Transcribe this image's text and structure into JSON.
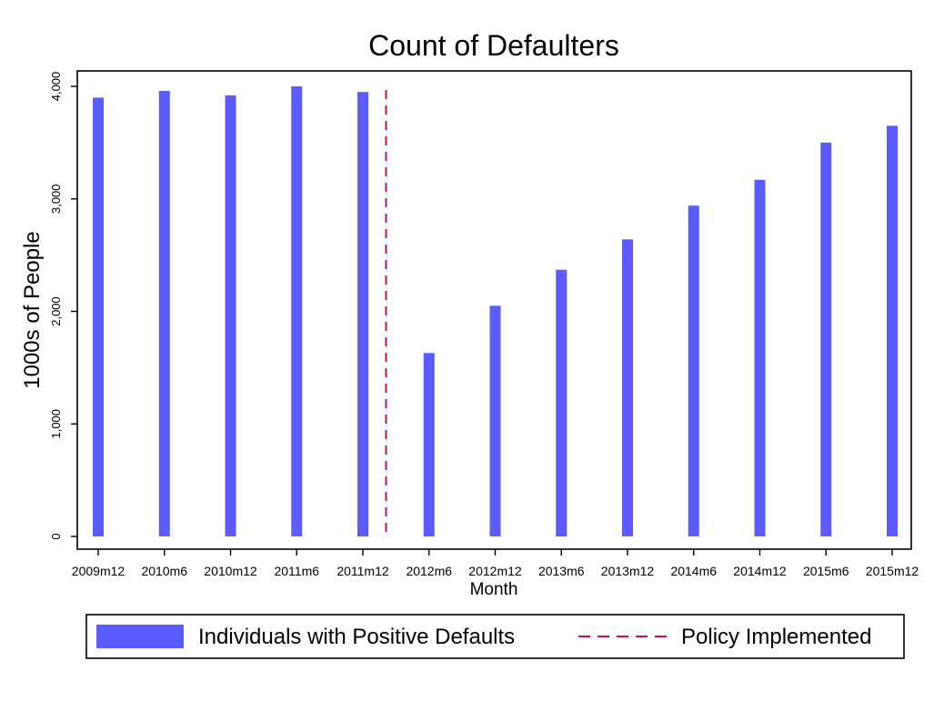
{
  "colors": {
    "bar": "#5b5bff",
    "policy_line": "#c0144c",
    "axis": "#000000",
    "background": "#ffffff"
  },
  "chart_data": {
    "type": "bar",
    "title": "Count of Defaulters",
    "xlabel": "Month",
    "ylabel": "1000s of People",
    "ylim": [
      0,
      4000
    ],
    "yticks": [
      "0",
      "1,000",
      "2,000",
      "3,000",
      "4,000"
    ],
    "ytick_values": [
      0,
      1000,
      2000,
      3000,
      4000
    ],
    "categories": [
      "2009m12",
      "2010m6",
      "2010m12",
      "2011m6",
      "2011m12",
      "2012m6",
      "2012m12",
      "2013m6",
      "2013m12",
      "2014m6",
      "2014m12",
      "2015m6",
      "2015m12"
    ],
    "series": [
      {
        "name": "Individuals with Positive Defaults",
        "values": [
          3900,
          3960,
          3920,
          4000,
          3950,
          1630,
          2050,
          2370,
          2640,
          2940,
          3170,
          3500,
          3650
        ]
      }
    ],
    "policy_line": {
      "name": "Policy Implemented",
      "position_between": [
        "2011m12",
        "2012m6"
      ]
    },
    "legend": [
      "Individuals with Positive Defaults",
      "Policy Implemented"
    ],
    "legend_placement": "bottom",
    "grid": false
  }
}
